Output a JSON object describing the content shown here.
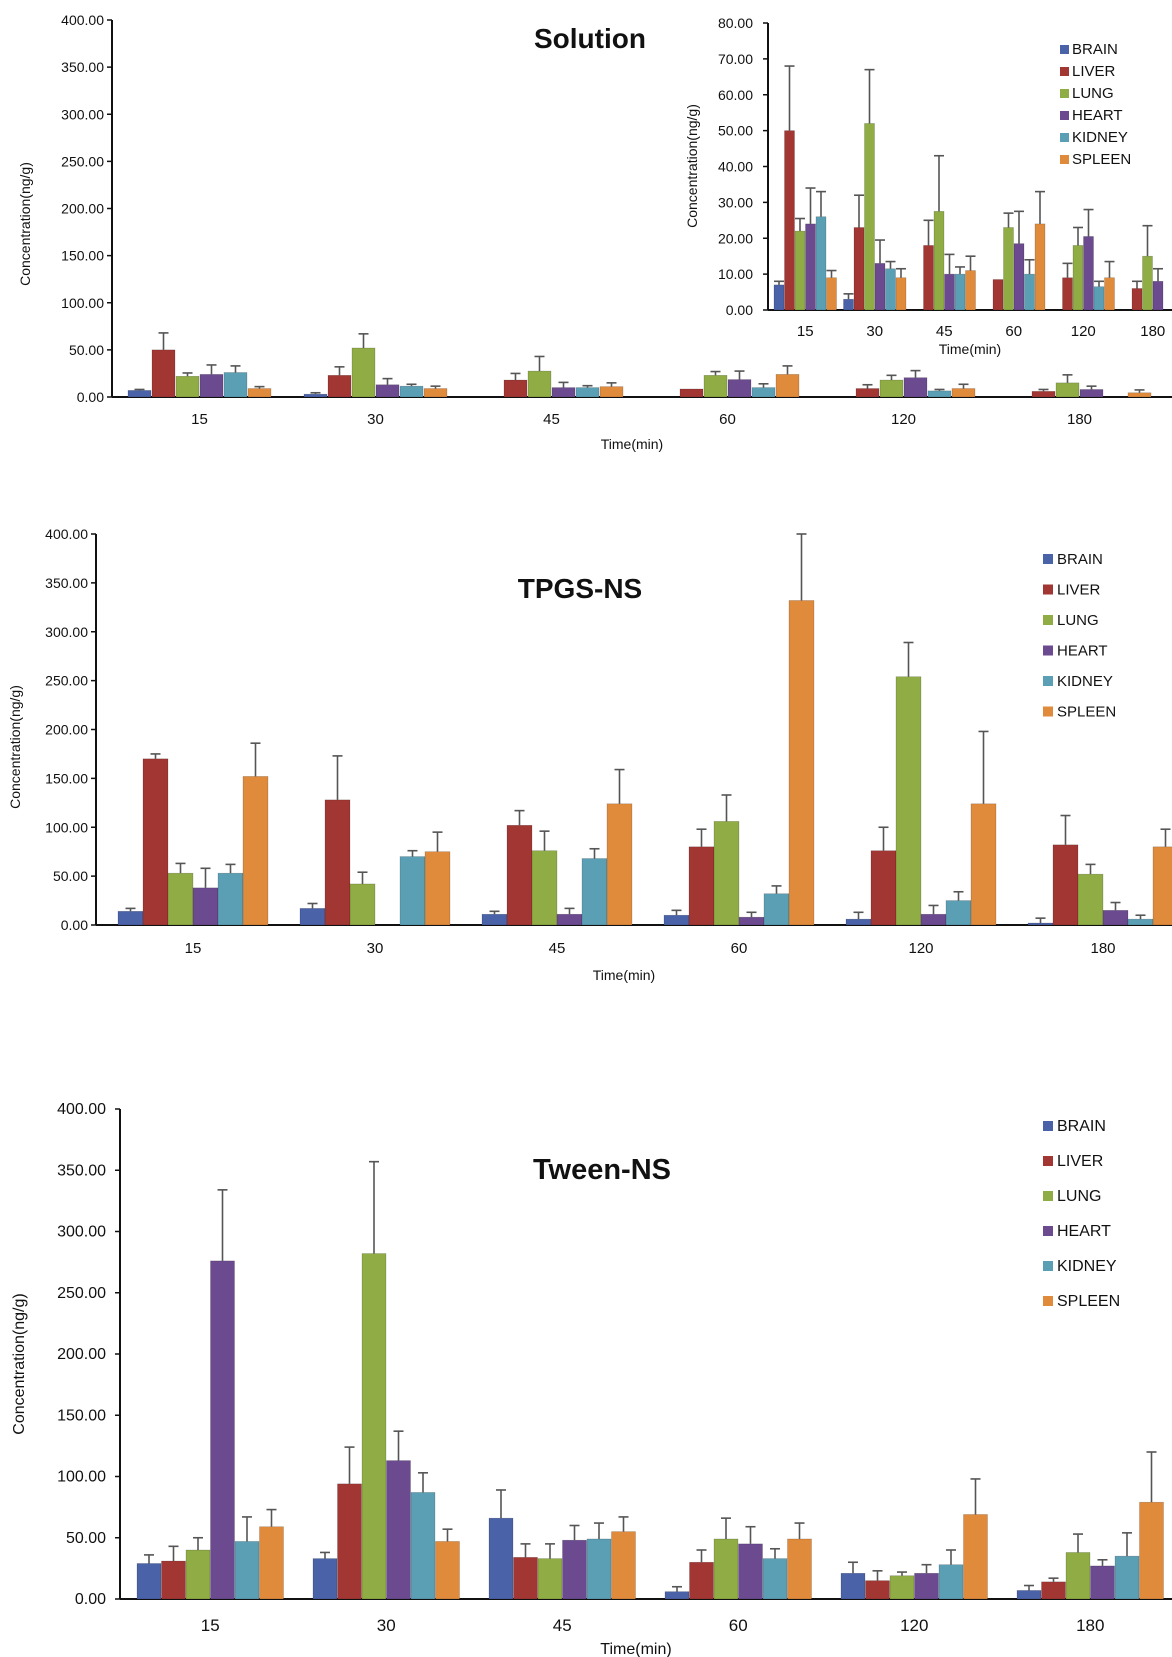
{
  "colors": {
    "BRAIN": "#4a62a8",
    "LIVER": "#a23633",
    "LUNG": "#8fac45",
    "HEART": "#6b4a8f",
    "KIDNEY": "#5b9fb5",
    "SPLEEN": "#e08a3c"
  },
  "chart_data": [
    {
      "type": "bar",
      "title": "Solution",
      "xlabel": "Time(min)",
      "ylabel": "Concentration(ng/g)",
      "ylim": [
        0,
        400
      ],
      "yticks": [
        "0.00",
        "50.00",
        "100.00",
        "150.00",
        "200.00",
        "250.00",
        "300.00",
        "350.00",
        "400.00"
      ],
      "categories": [
        "15",
        "30",
        "45",
        "60",
        "120",
        "180"
      ],
      "legend_position": "inset",
      "series": [
        {
          "name": "BRAIN",
          "values": [
            7,
            3,
            null,
            null,
            null,
            null
          ],
          "errors": [
            1,
            1.5,
            0,
            0,
            0,
            0
          ]
        },
        {
          "name": "LIVER",
          "values": [
            50,
            23,
            18,
            8.5,
            9,
            6
          ],
          "errors": [
            18,
            9,
            7,
            0,
            4,
            2
          ]
        },
        {
          "name": "LUNG",
          "values": [
            22,
            52,
            27.5,
            23,
            18,
            15
          ],
          "errors": [
            3.5,
            15,
            15.5,
            4,
            5,
            8.5
          ]
        },
        {
          "name": "HEART",
          "values": [
            24,
            13,
            10,
            18.5,
            20.5,
            8
          ],
          "errors": [
            10,
            6.5,
            5.5,
            9,
            7.5,
            3.5
          ]
        },
        {
          "name": "KIDNEY",
          "values": [
            26,
            11.5,
            10,
            10,
            6.5,
            null
          ],
          "errors": [
            7,
            2,
            2,
            4,
            1.5,
            0
          ]
        },
        {
          "name": "SPLEEN",
          "values": [
            9,
            9,
            11,
            24,
            9,
            4.5
          ],
          "errors": [
            2,
            2.5,
            4,
            9,
            4.5,
            3
          ]
        }
      ]
    },
    {
      "type": "bar",
      "title": "",
      "xlabel": "Time(min)",
      "ylabel": "Concentration(ng/g)",
      "ylim": [
        0,
        80
      ],
      "yticks": [
        "0.00",
        "10.00",
        "20.00",
        "30.00",
        "40.00",
        "50.00",
        "60.00",
        "70.00",
        "80.00"
      ],
      "categories": [
        "15",
        "30",
        "45",
        "60",
        "120",
        "180"
      ],
      "legend_position": "top-right",
      "series": [
        {
          "name": "BRAIN",
          "values": [
            7,
            3,
            null,
            null,
            null,
            null
          ],
          "errors": [
            1,
            1.5,
            0,
            0,
            0,
            0
          ]
        },
        {
          "name": "LIVER",
          "values": [
            50,
            23,
            18,
            8.5,
            9,
            6
          ],
          "errors": [
            18,
            9,
            7,
            0,
            4,
            2
          ]
        },
        {
          "name": "LUNG",
          "values": [
            22,
            52,
            27.5,
            23,
            18,
            15
          ],
          "errors": [
            3.5,
            15,
            15.5,
            4,
            5,
            8.5
          ]
        },
        {
          "name": "HEART",
          "values": [
            24,
            13,
            10,
            18.5,
            20.5,
            8
          ],
          "errors": [
            10,
            6.5,
            5.5,
            9,
            7.5,
            3.5
          ]
        },
        {
          "name": "KIDNEY",
          "values": [
            26,
            11.5,
            10,
            10,
            6.5,
            null
          ],
          "errors": [
            7,
            2,
            2,
            4,
            1.5,
            0
          ]
        },
        {
          "name": "SPLEEN",
          "values": [
            9,
            9,
            11,
            24,
            9,
            4.5
          ],
          "errors": [
            2,
            2.5,
            4,
            9,
            4.5,
            3
          ]
        }
      ]
    },
    {
      "type": "bar",
      "title": "TPGS-NS",
      "xlabel": "Time(min)",
      "ylabel": "Concentration(ng/g)",
      "ylim": [
        0,
        400
      ],
      "yticks": [
        "0.00",
        "50.00",
        "100.00",
        "150.00",
        "200.00",
        "250.00",
        "300.00",
        "350.00",
        "400.00"
      ],
      "categories": [
        "15",
        "30",
        "45",
        "60",
        "120",
        "180"
      ],
      "legend_position": "top-right",
      "series": [
        {
          "name": "BRAIN",
          "values": [
            14,
            17,
            11,
            10,
            6,
            2
          ],
          "errors": [
            3,
            5,
            3,
            5,
            7,
            5
          ]
        },
        {
          "name": "LIVER",
          "values": [
            170,
            128,
            102,
            80,
            76,
            82
          ],
          "errors": [
            5,
            45,
            15,
            18,
            24,
            30
          ]
        },
        {
          "name": "LUNG",
          "values": [
            53,
            42,
            76,
            106,
            254,
            52
          ],
          "errors": [
            10,
            12,
            20,
            27,
            35,
            10
          ]
        },
        {
          "name": "HEART",
          "values": [
            38,
            null,
            11,
            8,
            11,
            15
          ],
          "errors": [
            20,
            0,
            6,
            5,
            9,
            8
          ]
        },
        {
          "name": "KIDNEY",
          "values": [
            53,
            70,
            68,
            32,
            25,
            6
          ],
          "errors": [
            9,
            6,
            10,
            8,
            9,
            4
          ]
        },
        {
          "name": "SPLEEN",
          "values": [
            152,
            75,
            124,
            332,
            124,
            80
          ],
          "errors": [
            34,
            20,
            35,
            68,
            74,
            18
          ]
        }
      ]
    },
    {
      "type": "bar",
      "title": "Tween-NS",
      "xlabel": "Time(min)",
      "ylabel": "Concentration(ng/g)",
      "ylim": [
        0,
        400
      ],
      "yticks": [
        "0.00",
        "50.00",
        "100.00",
        "150.00",
        "200.00",
        "250.00",
        "300.00",
        "350.00",
        "400.00"
      ],
      "categories": [
        "15",
        "30",
        "45",
        "60",
        "120",
        "180"
      ],
      "legend_position": "top-right",
      "series": [
        {
          "name": "BRAIN",
          "values": [
            29,
            33,
            66,
            6,
            21,
            7
          ],
          "errors": [
            7,
            5,
            23,
            4,
            9,
            4
          ]
        },
        {
          "name": "LIVER",
          "values": [
            31,
            94,
            34,
            30,
            15,
            14
          ],
          "errors": [
            12,
            30,
            11,
            10,
            8,
            3
          ]
        },
        {
          "name": "LUNG",
          "values": [
            40,
            282,
            33,
            49,
            19,
            38
          ],
          "errors": [
            10,
            75,
            12,
            17,
            3,
            15
          ]
        },
        {
          "name": "HEART",
          "values": [
            276,
            113,
            48,
            45,
            21,
            27
          ],
          "errors": [
            58,
            24,
            12,
            14,
            7,
            5
          ]
        },
        {
          "name": "KIDNEY",
          "values": [
            47,
            87,
            49,
            33,
            28,
            35
          ],
          "errors": [
            20,
            16,
            13,
            8,
            12,
            19
          ]
        },
        {
          "name": "SPLEEN",
          "values": [
            59,
            47,
            55,
            49,
            69,
            79
          ],
          "errors": [
            14,
            10,
            12,
            13,
            29,
            41
          ]
        }
      ]
    }
  ]
}
